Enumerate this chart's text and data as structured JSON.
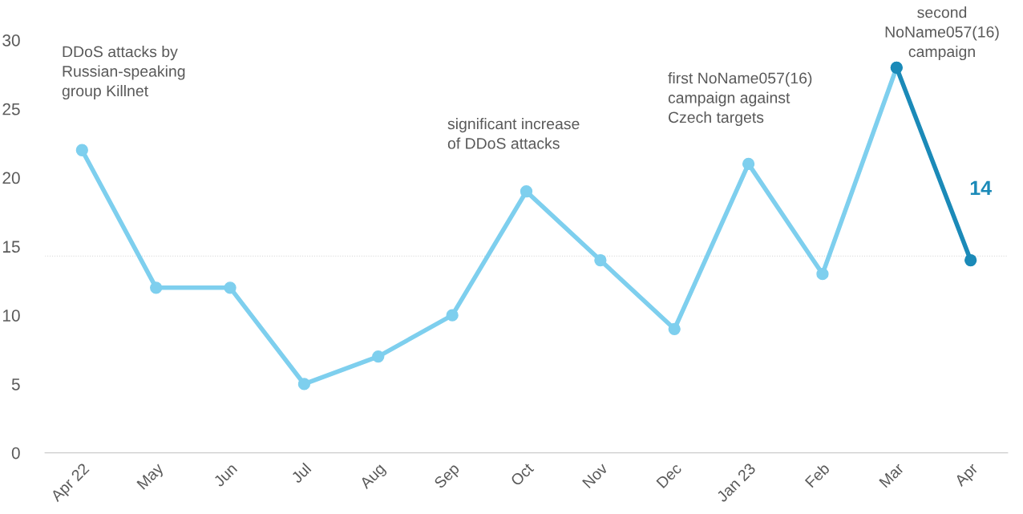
{
  "chart_data": {
    "type": "line",
    "categories": [
      "Apr 22",
      "May",
      "Jun",
      "Jul",
      "Aug",
      "Sep",
      "Oct",
      "Nov",
      "Dec",
      "Jan 23",
      "Feb",
      "Mar",
      "Apr"
    ],
    "series": [
      {
        "color": "#7ecfee",
        "values": [
          22,
          12,
          12,
          5,
          7,
          10,
          19,
          14,
          9,
          21,
          13,
          28,
          null
        ]
      },
      {
        "color": "#1b8ab8",
        "values": [
          null,
          null,
          null,
          null,
          null,
          null,
          null,
          null,
          null,
          null,
          null,
          28,
          14
        ],
        "value_labels": [
          null,
          null,
          null,
          null,
          null,
          null,
          null,
          null,
          null,
          null,
          null,
          null,
          "14"
        ]
      }
    ],
    "marker": "circle",
    "line_style": "solid",
    "grid": false,
    "legend": false,
    "ylim": [
      0,
      30
    ],
    "yticks": [
      0,
      5,
      10,
      15,
      20,
      25,
      30
    ],
    "ref_lines": [
      {
        "axis": "y",
        "value": 14.3,
        "color": "#dddddd",
        "line_style": "dotted"
      }
    ],
    "annotations": [
      "DDoS attacks by\nRussian-speaking\ngroup Killnet",
      "significant increase\nof DDoS attacks",
      "first NoName057(16)\ncampaign against\nCzech targets",
      "second\nNoName057(16)\ncampaign"
    ]
  }
}
